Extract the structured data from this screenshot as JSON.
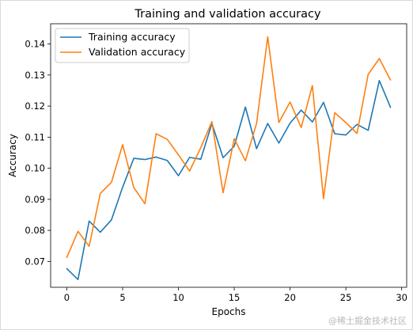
{
  "chart_data": {
    "type": "line",
    "title": "Training and validation accuracy",
    "xlabel": "Epochs",
    "ylabel": "Accuracy",
    "xlim": [
      -1.45,
      30.45
    ],
    "ylim": [
      0.0617,
      0.1465
    ],
    "xticks": [
      0,
      5,
      10,
      15,
      20,
      25,
      30
    ],
    "yticks": [
      0.07,
      0.08,
      0.09,
      0.1,
      0.11,
      0.12,
      0.13,
      0.14
    ],
    "ytick_labels": [
      "0.07",
      "0.08",
      "0.09",
      "0.10",
      "0.11",
      "0.12",
      "0.13",
      "0.14"
    ],
    "grid": false,
    "legend": "top-left",
    "x": [
      0,
      1,
      2,
      3,
      4,
      5,
      6,
      7,
      8,
      9,
      10,
      11,
      12,
      13,
      14,
      15,
      16,
      17,
      18,
      19,
      20,
      21,
      22,
      23,
      24,
      25,
      26,
      27,
      28,
      29
    ],
    "series": [
      {
        "name": "Training accuracy",
        "color": "#1f77b4",
        "values": [
          0.0677,
          0.0642,
          0.083,
          0.0794,
          0.0834,
          0.0939,
          0.1032,
          0.1028,
          0.1036,
          0.1025,
          0.0976,
          0.1035,
          0.1029,
          0.1144,
          0.1034,
          0.1071,
          0.1197,
          0.1063,
          0.1144,
          0.1081,
          0.1145,
          0.1187,
          0.1149,
          0.1212,
          0.1111,
          0.1107,
          0.1141,
          0.1122,
          0.1282,
          0.1196
        ]
      },
      {
        "name": "Validation accuracy",
        "color": "#ff7f0e",
        "values": [
          0.0713,
          0.0797,
          0.0749,
          0.0919,
          0.0955,
          0.1076,
          0.0938,
          0.0886,
          0.1111,
          0.1093,
          0.1043,
          0.0991,
          0.1066,
          0.115,
          0.0921,
          0.1095,
          0.1024,
          0.1144,
          0.1423,
          0.1147,
          0.1213,
          0.1131,
          0.1266,
          0.0902,
          0.1179,
          0.1147,
          0.1112,
          0.1302,
          0.1353,
          0.1284
        ]
      }
    ]
  },
  "watermark": "@稀土掘金技术社区"
}
